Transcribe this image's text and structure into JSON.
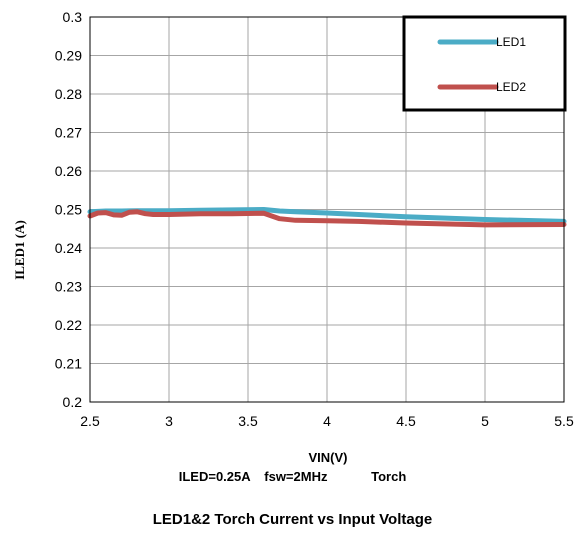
{
  "chart_data": {
    "type": "line",
    "title": "LED1&2 Torch Current vs Input Voltage",
    "conditions": {
      "iled": "ILED=0.25A",
      "fsw": "fsw=2MHz",
      "mode": "Torch"
    },
    "xlabel": "VIN(V)",
    "ylabel": "ILED1 (A)",
    "xlim": [
      2.5,
      5.5
    ],
    "ylim": [
      0.2,
      0.3
    ],
    "xticks": [
      "2.5",
      "3",
      "3.5",
      "4",
      "4.5",
      "5",
      "5.5"
    ],
    "yticks": [
      "0.2",
      "0.21",
      "0.22",
      "0.23",
      "0.24",
      "0.25",
      "0.26",
      "0.27",
      "0.28",
      "0.29",
      "0.3"
    ],
    "grid": true,
    "legend_position": "top-right",
    "series": [
      {
        "name": "LED1",
        "color": "#4bacc6",
        "x": [
          2.5,
          2.6,
          2.7,
          2.8,
          3.0,
          3.2,
          3.4,
          3.6,
          3.7,
          3.8,
          4.0,
          4.2,
          4.5,
          5.0,
          5.5
        ],
        "y": [
          0.2494,
          0.2496,
          0.2496,
          0.2497,
          0.2497,
          0.2498,
          0.2499,
          0.25,
          0.2496,
          0.2494,
          0.2491,
          0.2487,
          0.2481,
          0.2474,
          0.2469
        ]
      },
      {
        "name": "LED2",
        "color": "#c0504d",
        "x": [
          2.5,
          2.55,
          2.6,
          2.65,
          2.7,
          2.75,
          2.8,
          2.85,
          2.9,
          3.0,
          3.2,
          3.4,
          3.6,
          3.7,
          3.8,
          4.0,
          4.2,
          4.5,
          5.0,
          5.5
        ],
        "y": [
          0.2483,
          0.2491,
          0.2492,
          0.2486,
          0.2485,
          0.2493,
          0.2494,
          0.2489,
          0.2487,
          0.2487,
          0.2489,
          0.2489,
          0.249,
          0.2476,
          0.2472,
          0.2471,
          0.2469,
          0.2465,
          0.246,
          0.2461
        ]
      }
    ]
  }
}
